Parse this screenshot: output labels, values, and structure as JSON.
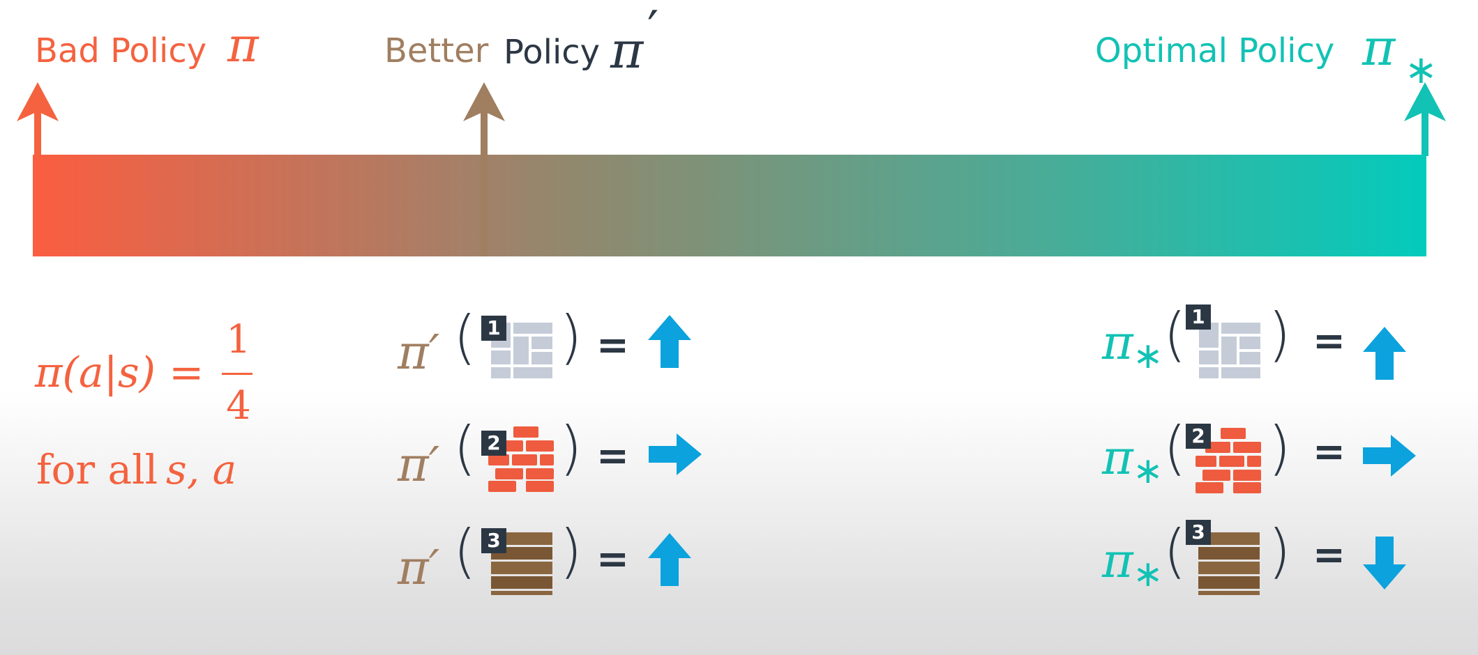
{
  "top": {
    "bad_label": "Bad Policy",
    "bad_symbol": "π",
    "better_word": "Better",
    "better_policy_word": "Policy",
    "better_symbol": "π",
    "better_prime": "′",
    "optimal_label": "Optimal Policy",
    "optimal_symbol": "π",
    "optimal_star": "∗"
  },
  "colors": {
    "bad": "#f4623f",
    "better": "#a07e60",
    "optimal": "#12c2b4",
    "dark": "#2c3744",
    "arrow": "#0ba2dd"
  },
  "bad_policy": {
    "formula_lhs": "π(a|s) =",
    "frac_num": "1",
    "frac_den": "4",
    "forall_text": "for all",
    "forall_vars": "s, a"
  },
  "better_rows": [
    {
      "symbol": "π′",
      "open": "(",
      "close": ")",
      "eq": "=",
      "state": "1",
      "tile": "grid",
      "action": "up-arrow-icon"
    },
    {
      "symbol": "π′",
      "open": "(",
      "close": ")",
      "eq": "=",
      "state": "2",
      "tile": "brick",
      "action": "right-arrow-icon"
    },
    {
      "symbol": "π′",
      "open": "(",
      "close": ")",
      "eq": "=",
      "state": "3",
      "tile": "wood",
      "action": "up-arrow-icon"
    }
  ],
  "optimal_rows": [
    {
      "symbol": "π",
      "sub": "∗",
      "open": "(",
      "close": ")",
      "eq": "=",
      "state": "1",
      "tile": "grid",
      "action": "up-arrow-icon"
    },
    {
      "symbol": "π",
      "sub": "∗",
      "open": "(",
      "close": ")",
      "eq": "=",
      "state": "2",
      "tile": "brick",
      "action": "right-arrow-icon"
    },
    {
      "symbol": "π",
      "sub": "∗",
      "open": "(",
      "close": ")",
      "eq": "=",
      "state": "3",
      "tile": "wood",
      "action": "down-arrow-icon"
    }
  ]
}
